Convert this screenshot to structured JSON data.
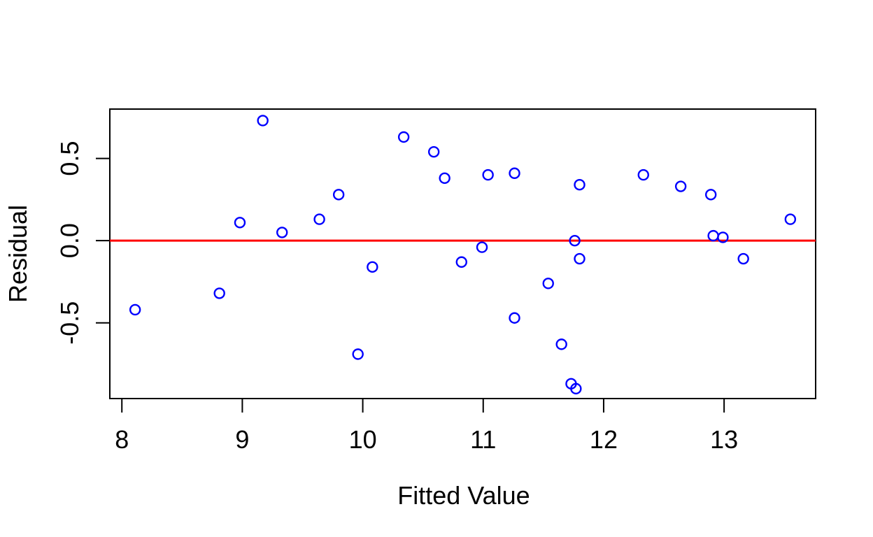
{
  "figure": {
    "background": "#ffffff",
    "frame_color": "#000000"
  },
  "chart_data": {
    "type": "scatter",
    "title": "",
    "xlabel": "Fitted Value",
    "ylabel": "Residual",
    "xlim": [
      7.9,
      13.76
    ],
    "ylim": [
      -0.96,
      0.8
    ],
    "grid": false,
    "legend": "none",
    "x_ticks": {
      "values": [
        8,
        9,
        10,
        11,
        12,
        13
      ],
      "labels": [
        "8",
        "9",
        "10",
        "11",
        "12",
        "13"
      ]
    },
    "y_ticks": {
      "values": [
        -0.5,
        0.0,
        0.5
      ],
      "labels": [
        "-0.5",
        "0.0",
        "0.5"
      ]
    },
    "reference_line": {
      "y": 0.0,
      "color": "#FF0000"
    },
    "point_style": {
      "shape": "open-circle",
      "color": "#0000FF"
    },
    "series": [
      {
        "name": "residuals",
        "points": [
          {
            "x": 8.11,
            "y": -0.42
          },
          {
            "x": 8.81,
            "y": -0.32
          },
          {
            "x": 8.98,
            "y": 0.11
          },
          {
            "x": 9.17,
            "y": 0.73
          },
          {
            "x": 9.33,
            "y": 0.05
          },
          {
            "x": 9.64,
            "y": 0.13
          },
          {
            "x": 9.8,
            "y": 0.28
          },
          {
            "x": 9.96,
            "y": -0.69
          },
          {
            "x": 10.08,
            "y": -0.16
          },
          {
            "x": 10.34,
            "y": 0.63
          },
          {
            "x": 10.59,
            "y": 0.54
          },
          {
            "x": 10.68,
            "y": 0.38
          },
          {
            "x": 10.82,
            "y": -0.13
          },
          {
            "x": 10.99,
            "y": -0.04
          },
          {
            "x": 11.04,
            "y": 0.4
          },
          {
            "x": 11.26,
            "y": 0.41
          },
          {
            "x": 11.26,
            "y": -0.47
          },
          {
            "x": 11.54,
            "y": -0.26
          },
          {
            "x": 11.65,
            "y": -0.63
          },
          {
            "x": 11.73,
            "y": -0.87
          },
          {
            "x": 11.76,
            "y": 0.0
          },
          {
            "x": 11.77,
            "y": -0.9
          },
          {
            "x": 11.8,
            "y": 0.34
          },
          {
            "x": 11.8,
            "y": -0.11
          },
          {
            "x": 12.33,
            "y": 0.4
          },
          {
            "x": 12.64,
            "y": 0.33
          },
          {
            "x": 12.89,
            "y": 0.28
          },
          {
            "x": 12.91,
            "y": 0.03
          },
          {
            "x": 12.99,
            "y": 0.02
          },
          {
            "x": 13.16,
            "y": -0.11
          },
          {
            "x": 13.55,
            "y": 0.13
          }
        ]
      }
    ]
  }
}
